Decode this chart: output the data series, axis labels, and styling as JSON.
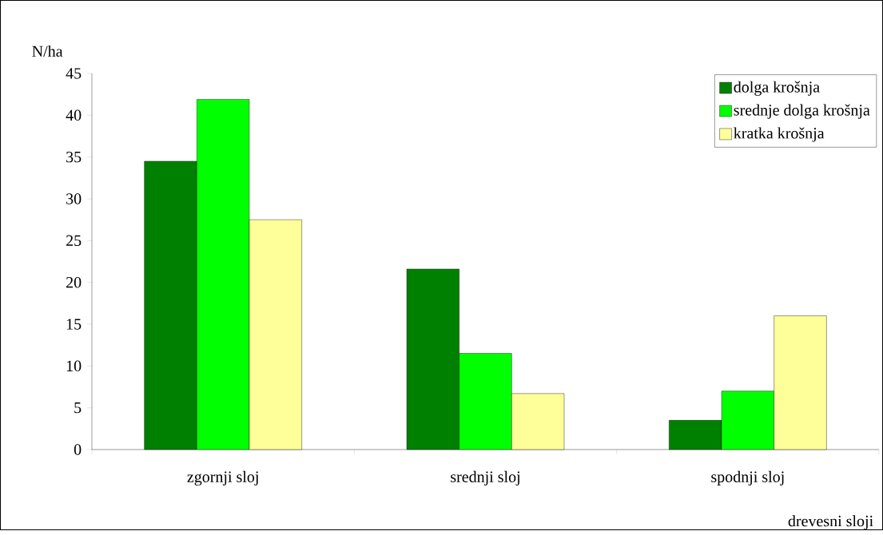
{
  "chart_data": {
    "type": "bar",
    "ylabel": "N/ha",
    "xlabel": "drevesni sloji",
    "categories": [
      "zgornji sloj",
      "srednji sloj",
      "spodnji sloj"
    ],
    "series": [
      {
        "name": "dolga krošnja",
        "color": "#008000",
        "values": [
          34.5,
          21.6,
          3.5
        ]
      },
      {
        "name": "srednje dolga krošnja",
        "color": "#00ff00",
        "values": [
          41.9,
          11.5,
          7
        ]
      },
      {
        "name": "kratka krošnja",
        "color": "#ffff99",
        "values": [
          27.5,
          6.7,
          16
        ]
      }
    ],
    "ylim": [
      0,
      45
    ],
    "yticks": [
      0,
      5,
      10,
      15,
      20,
      25,
      30,
      35,
      40,
      45
    ],
    "legend": "top right",
    "grid": false
  }
}
